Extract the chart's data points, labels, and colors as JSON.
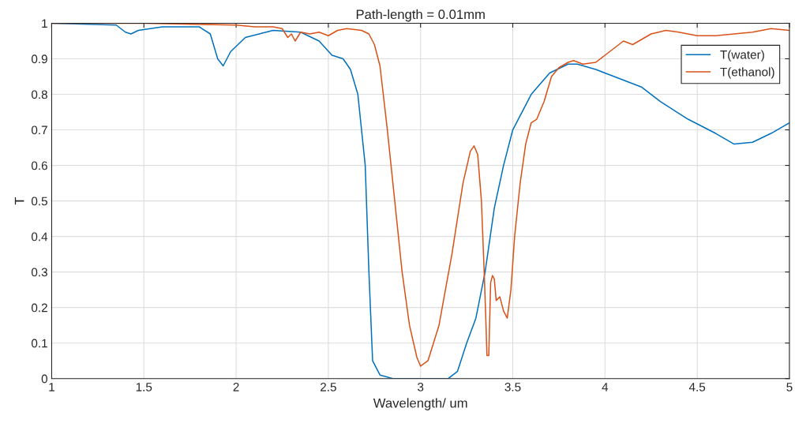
{
  "chart_data": {
    "type": "line",
    "title": "Path-length = 0.01mm",
    "xlabel": "Wavelength/ um",
    "ylabel": "T",
    "xlim": [
      1,
      5
    ],
    "ylim": [
      0,
      1
    ],
    "xticks": [
      1,
      1.5,
      2,
      2.5,
      3,
      3.5,
      4,
      4.5,
      5
    ],
    "yticks": [
      0,
      0.1,
      0.2,
      0.3,
      0.4,
      0.5,
      0.6,
      0.7,
      0.8,
      0.9,
      1
    ],
    "grid": true,
    "legend": "top right",
    "line_style": "solid",
    "marker": "none",
    "series": [
      {
        "name": "T(water)",
        "color": "#0072bd",
        "x": [
          1,
          1.35,
          1.4,
          1.43,
          1.47,
          1.6,
          1.8,
          1.86,
          1.9,
          1.93,
          1.97,
          2.05,
          2.2,
          2.35,
          2.45,
          2.52,
          2.58,
          2.62,
          2.66,
          2.7,
          2.72,
          2.74,
          2.78,
          2.85,
          3.0,
          3.15,
          3.2,
          3.25,
          3.3,
          3.35,
          3.4,
          3.45,
          3.5,
          3.6,
          3.7,
          3.8,
          3.85,
          3.95,
          4.05,
          4.2,
          4.3,
          4.45,
          4.6,
          4.7,
          4.8,
          4.9,
          5
        ],
        "values": [
          1,
          0.995,
          0.975,
          0.97,
          0.98,
          0.99,
          0.99,
          0.97,
          0.9,
          0.88,
          0.92,
          0.96,
          0.98,
          0.975,
          0.95,
          0.91,
          0.9,
          0.87,
          0.8,
          0.6,
          0.3,
          0.05,
          0.01,
          0,
          0,
          0,
          0.02,
          0.1,
          0.17,
          0.3,
          0.48,
          0.6,
          0.7,
          0.8,
          0.86,
          0.885,
          0.885,
          0.87,
          0.85,
          0.82,
          0.78,
          0.73,
          0.69,
          0.66,
          0.665,
          0.69,
          0.72
        ]
      },
      {
        "name": "T(ethanol)",
        "color": "#d95319",
        "x": [
          1,
          1.5,
          2.0,
          2.1,
          2.2,
          2.25,
          2.28,
          2.3,
          2.32,
          2.35,
          2.4,
          2.45,
          2.5,
          2.55,
          2.6,
          2.68,
          2.72,
          2.75,
          2.78,
          2.82,
          2.86,
          2.9,
          2.94,
          2.98,
          3.0,
          3.04,
          3.1,
          3.17,
          3.23,
          3.27,
          3.29,
          3.31,
          3.33,
          3.345,
          3.355,
          3.36,
          3.37,
          3.38,
          3.39,
          3.4,
          3.41,
          3.43,
          3.45,
          3.47,
          3.49,
          3.51,
          3.54,
          3.57,
          3.6,
          3.63,
          3.67,
          3.71,
          3.75,
          3.8,
          3.83,
          3.88,
          3.95,
          4.0,
          4.1,
          4.15,
          4.25,
          4.33,
          4.4,
          4.5,
          4.6,
          4.7,
          4.8,
          4.9,
          5
        ],
        "values": [
          1,
          1,
          0.995,
          0.99,
          0.99,
          0.985,
          0.96,
          0.97,
          0.95,
          0.975,
          0.97,
          0.975,
          0.965,
          0.98,
          0.985,
          0.98,
          0.97,
          0.94,
          0.88,
          0.7,
          0.5,
          0.3,
          0.15,
          0.06,
          0.035,
          0.05,
          0.15,
          0.35,
          0.55,
          0.64,
          0.655,
          0.63,
          0.5,
          0.3,
          0.15,
          0.065,
          0.065,
          0.27,
          0.29,
          0.28,
          0.22,
          0.23,
          0.19,
          0.17,
          0.25,
          0.4,
          0.55,
          0.66,
          0.72,
          0.73,
          0.78,
          0.85,
          0.875,
          0.89,
          0.895,
          0.885,
          0.89,
          0.91,
          0.95,
          0.94,
          0.97,
          0.98,
          0.975,
          0.965,
          0.965,
          0.97,
          0.975,
          0.985,
          0.98
        ]
      }
    ]
  }
}
